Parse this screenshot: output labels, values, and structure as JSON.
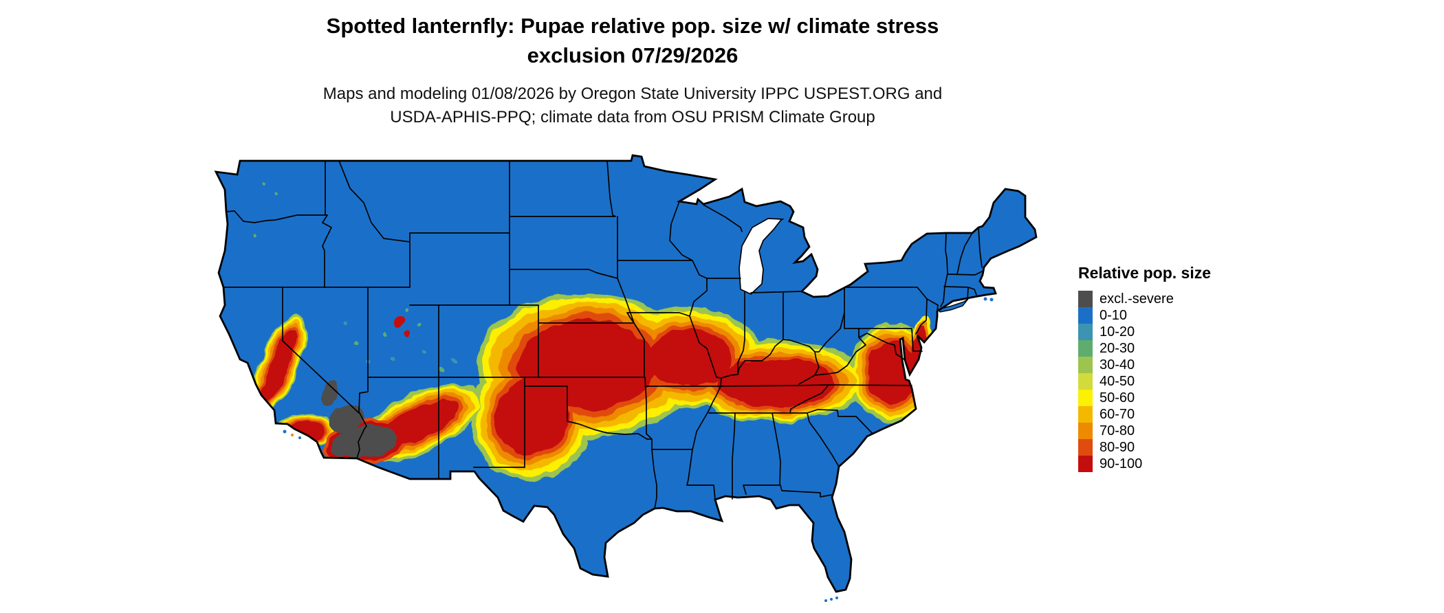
{
  "header": {
    "title_line1": "Spotted lanternfly: Pupae relative pop. size w/ climate stress",
    "title_line2": "exclusion 07/29/2026",
    "subtitle_line1": "Maps and modeling 01/08/2026 by Oregon State University IPPC USPEST.ORG and",
    "subtitle_line2": "USDA-APHIS-PPQ; climate data from OSU PRISM Climate Group"
  },
  "legend": {
    "title": "Relative pop. size",
    "items": [
      {
        "label": "excl.-severe",
        "color": "#4D4D4D"
      },
      {
        "label": "0-10",
        "color": "#1A70C8"
      },
      {
        "label": "10-20",
        "color": "#3D93B2"
      },
      {
        "label": "20-30",
        "color": "#5FAD6E"
      },
      {
        "label": "30-40",
        "color": "#9CC44F"
      },
      {
        "label": "40-50",
        "color": "#D3DB3A"
      },
      {
        "label": "50-60",
        "color": "#FCF003"
      },
      {
        "label": "60-70",
        "color": "#F5B801"
      },
      {
        "label": "70-80",
        "color": "#EE8A00"
      },
      {
        "label": "80-90",
        "color": "#E04B0F"
      },
      {
        "label": "90-100",
        "color": "#C40D0D"
      }
    ]
  },
  "map": {
    "base_color": "#1A70C8",
    "exclusion_color": "#4E4E4E"
  }
}
